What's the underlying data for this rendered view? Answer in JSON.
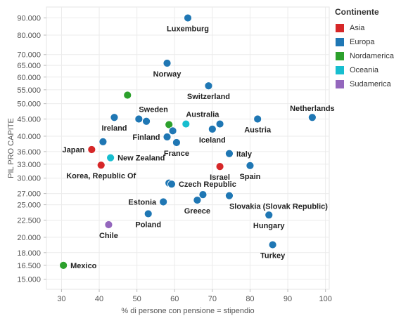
{
  "chart_data": {
    "type": "scatter",
    "xlabel": "% di persone con pensione = stipendio",
    "ylabel": "PIL PRO CAPITE",
    "xlim": [
      26,
      101
    ],
    "ylim": [
      14000,
      97000
    ],
    "log_y": true,
    "grid": true,
    "x_ticks": [
      30,
      40,
      50,
      60,
      70,
      80,
      90,
      100
    ],
    "x_tick_labels": [
      "30",
      "40",
      "50",
      "60",
      "70",
      "80",
      "90",
      "100"
    ],
    "y_ticks": [
      15000,
      16500,
      18000,
      20000,
      22500,
      25000,
      27000,
      30000,
      33000,
      36000,
      40000,
      45000,
      50000,
      55000,
      60000,
      65000,
      70000,
      80000,
      90000
    ],
    "y_tick_labels": [
      "15.000",
      "16.500",
      "18.000",
      "20.000",
      "22.500",
      "25.000",
      "27.000",
      "30.000",
      "33.000",
      "36.000",
      "40.000",
      "45.000",
      "50.000",
      "55.000",
      "60.000",
      "65.000",
      "70.000",
      "80.000",
      "90.000"
    ],
    "legend": {
      "title": "Continente",
      "position": "right",
      "items": [
        {
          "name": "Asia",
          "color": "#d62728"
        },
        {
          "name": "Europa",
          "color": "#1f77b4"
        },
        {
          "name": "Nordamerica",
          "color": "#2ca02c"
        },
        {
          "name": "Oceania",
          "color": "#17becf"
        },
        {
          "name": "Sudamerica",
          "color": "#9467bd"
        }
      ]
    },
    "points": [
      {
        "label": "Luxemburg",
        "x": 63.5,
        "y": 90000,
        "group": "Europa",
        "label_pos": "below"
      },
      {
        "label": "Norway",
        "x": 58,
        "y": 66000,
        "group": "Europa",
        "label_pos": "below"
      },
      {
        "label": "Switzerland",
        "x": 69,
        "y": 56500,
        "group": "Europa",
        "label_pos": "below"
      },
      {
        "label": "",
        "x": 47.5,
        "y": 53000,
        "group": "Nordamerica",
        "label_pos": "none"
      },
      {
        "label": "Netherlands",
        "x": 96.5,
        "y": 45500,
        "group": "Europa",
        "label_pos": "above"
      },
      {
        "label": "Austria",
        "x": 82,
        "y": 45000,
        "group": "Europa",
        "label_pos": "below"
      },
      {
        "label": "Ireland",
        "x": 44,
        "y": 45500,
        "group": "Europa",
        "label_pos": "below"
      },
      {
        "label": "Sweden",
        "x": 50.5,
        "y": 45000,
        "group": "Europa",
        "label_pos": "above-right"
      },
      {
        "label": "",
        "x": 52.5,
        "y": 44300,
        "group": "Europa",
        "label_pos": "none"
      },
      {
        "label": "Australia",
        "x": 63,
        "y": 43500,
        "group": "Oceania",
        "label_pos": "above-right"
      },
      {
        "label": "",
        "x": 58.5,
        "y": 43300,
        "group": "Nordamerica",
        "label_pos": "none"
      },
      {
        "label": "",
        "x": 72,
        "y": 43500,
        "group": "Europa",
        "label_pos": "none"
      },
      {
        "label": "Iceland",
        "x": 70,
        "y": 42000,
        "group": "Europa",
        "label_pos": "below"
      },
      {
        "label": "",
        "x": 59.5,
        "y": 41500,
        "group": "Europa",
        "label_pos": "none"
      },
      {
        "label": "Finland",
        "x": 58,
        "y": 39800,
        "group": "Europa",
        "label_pos": "left"
      },
      {
        "label": "France",
        "x": 60.5,
        "y": 38300,
        "group": "Europa",
        "label_pos": "below"
      },
      {
        "label": "",
        "x": 41,
        "y": 38500,
        "group": "Europa",
        "label_pos": "none"
      },
      {
        "label": "Japan",
        "x": 38,
        "y": 36500,
        "group": "Asia",
        "label_pos": "left"
      },
      {
        "label": "Italy",
        "x": 74.5,
        "y": 35500,
        "group": "Europa",
        "label_pos": "right"
      },
      {
        "label": "New Zealand",
        "x": 43,
        "y": 34500,
        "group": "Oceania",
        "label_pos": "right"
      },
      {
        "label": "Korea, Republic Of",
        "x": 40.5,
        "y": 32800,
        "group": "Asia",
        "label_pos": "below"
      },
      {
        "label": "Israel",
        "x": 72,
        "y": 32500,
        "group": "Asia",
        "label_pos": "below"
      },
      {
        "label": "Spain",
        "x": 80,
        "y": 32700,
        "group": "Europa",
        "label_pos": "below"
      },
      {
        "label": "",
        "x": 58.5,
        "y": 29000,
        "group": "Europa",
        "label_pos": "none"
      },
      {
        "label": "Czech Republic",
        "x": 59.2,
        "y": 28800,
        "group": "Europa",
        "label_pos": "right"
      },
      {
        "label": "",
        "x": 67.5,
        "y": 26800,
        "group": "Europa",
        "label_pos": "none"
      },
      {
        "label": "Slovakia (Slovak Republic)",
        "x": 74.5,
        "y": 26600,
        "group": "Europa",
        "label_pos": "below-right"
      },
      {
        "label": "Greece",
        "x": 66,
        "y": 25800,
        "group": "Europa",
        "label_pos": "below"
      },
      {
        "label": "Estonia",
        "x": 57,
        "y": 25500,
        "group": "Europa",
        "label_pos": "left"
      },
      {
        "label": "Poland",
        "x": 53,
        "y": 23500,
        "group": "Europa",
        "label_pos": "below"
      },
      {
        "label": "Hungary",
        "x": 85,
        "y": 23300,
        "group": "Europa",
        "label_pos": "below"
      },
      {
        "label": "Chile",
        "x": 42.5,
        "y": 21800,
        "group": "Sudamerica",
        "label_pos": "below"
      },
      {
        "label": "Turkey",
        "x": 86,
        "y": 19000,
        "group": "Europa",
        "label_pos": "below"
      },
      {
        "label": "Mexico",
        "x": 30.5,
        "y": 16500,
        "group": "Nordamerica",
        "label_pos": "right"
      }
    ]
  }
}
